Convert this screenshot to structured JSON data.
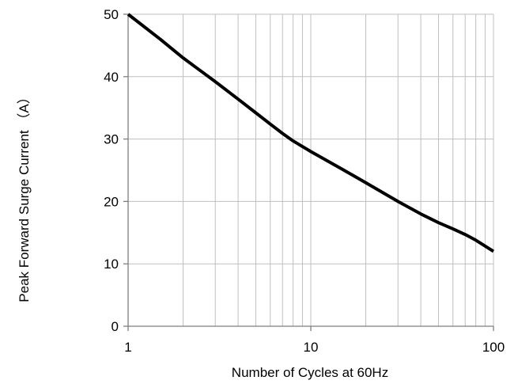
{
  "chart_data": {
    "type": "line",
    "xlabel": "Number of Cycles at 60Hz",
    "ylabel": "Peak Forward Surge Current （A）",
    "xscale": "log",
    "xlim": [
      1,
      100
    ],
    "ylim": [
      0,
      50
    ],
    "grid": true,
    "x_ticks": [
      1,
      10,
      100
    ],
    "x_tick_labels": [
      "1",
      "10",
      "100"
    ],
    "y_ticks": [
      0,
      10,
      20,
      30,
      40,
      50
    ],
    "y_tick_labels": [
      "0",
      "10",
      "20",
      "30",
      "40",
      "50"
    ],
    "series": [
      {
        "color": "#000000",
        "points": [
          {
            "x": 1,
            "y": 50
          },
          {
            "x": 1.5,
            "y": 46
          },
          {
            "x": 2,
            "y": 43
          },
          {
            "x": 3,
            "y": 39.2
          },
          {
            "x": 4,
            "y": 36.4
          },
          {
            "x": 5,
            "y": 34.2
          },
          {
            "x": 6,
            "y": 32.4
          },
          {
            "x": 7,
            "y": 30.9
          },
          {
            "x": 8,
            "y": 29.7
          },
          {
            "x": 10,
            "y": 28
          },
          {
            "x": 15,
            "y": 25.1
          },
          {
            "x": 20,
            "y": 23
          },
          {
            "x": 30,
            "y": 20
          },
          {
            "x": 40,
            "y": 18
          },
          {
            "x": 50,
            "y": 16.6
          },
          {
            "x": 60,
            "y": 15.6
          },
          {
            "x": 70,
            "y": 14.7
          },
          {
            "x": 80,
            "y": 13.8
          },
          {
            "x": 100,
            "y": 12
          }
        ]
      }
    ]
  },
  "colors": {
    "grid": "#bfbfbf",
    "axis": "#7f7f7f",
    "line": "#000000"
  }
}
